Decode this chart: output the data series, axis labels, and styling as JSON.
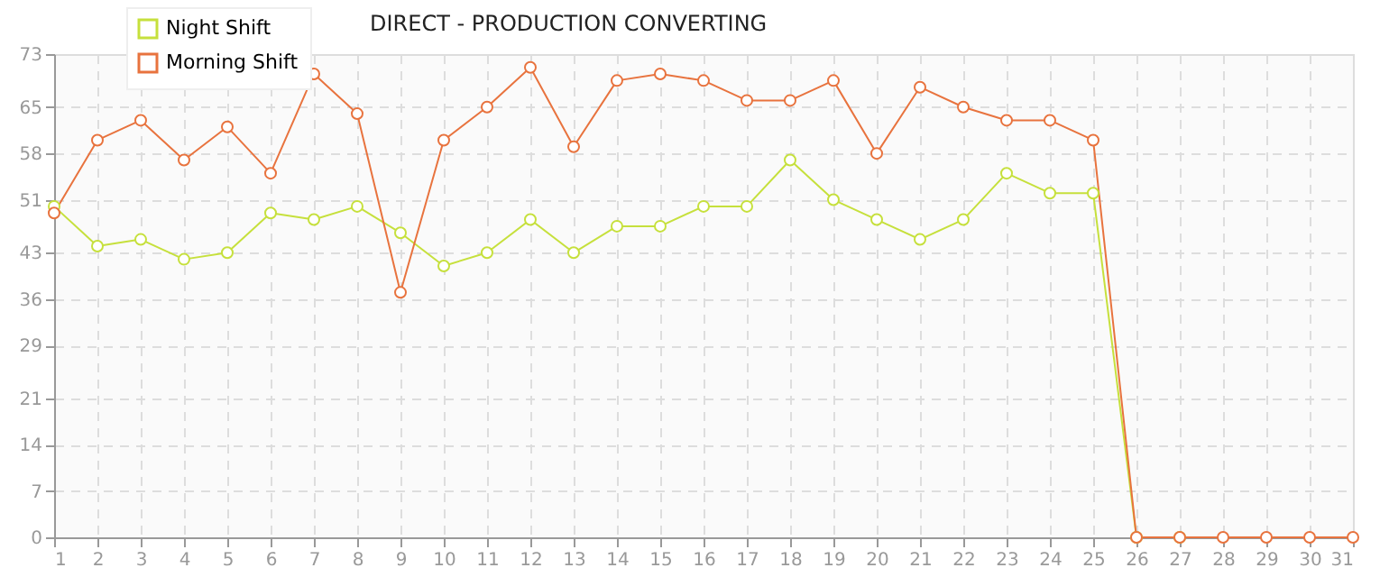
{
  "chart_data": {
    "type": "line",
    "title": "DIRECT - PRODUCTION CONVERTING",
    "x": [
      1,
      2,
      3,
      4,
      5,
      6,
      7,
      8,
      9,
      10,
      11,
      12,
      13,
      14,
      15,
      16,
      17,
      18,
      19,
      20,
      21,
      22,
      23,
      24,
      25,
      26,
      27,
      28,
      29,
      30,
      31
    ],
    "series": [
      {
        "name": "Night Shift",
        "color": "#c6e03c",
        "values": [
          50,
          44,
          45,
          42,
          43,
          49,
          48,
          50,
          46,
          41,
          43,
          48,
          43,
          47,
          47,
          50,
          50,
          57,
          51,
          48,
          45,
          48,
          55,
          52,
          52,
          0,
          0,
          null,
          null,
          null,
          null
        ]
      },
      {
        "name": "Morning Shift",
        "color": "#e8733e",
        "values": [
          49,
          60,
          63,
          57,
          62,
          55,
          70,
          64,
          37,
          60,
          65,
          71,
          59,
          69,
          70,
          69,
          66,
          66,
          69,
          58,
          68,
          65,
          63,
          63,
          60,
          0,
          0,
          0,
          0,
          0,
          0
        ]
      }
    ],
    "xlim": [
      1,
      31
    ],
    "xticks": [
      1,
      2,
      3,
      4,
      5,
      6,
      7,
      8,
      9,
      10,
      11,
      12,
      13,
      14,
      15,
      16,
      17,
      18,
      19,
      20,
      21,
      22,
      23,
      24,
      25,
      26,
      27,
      28,
      29,
      30,
      31
    ],
    "ylim": [
      0,
      73
    ],
    "yticks": [
      0,
      7,
      14,
      21,
      29,
      36,
      43,
      51,
      58,
      65,
      73
    ],
    "grid": true,
    "legend": "top left",
    "marker": "circle",
    "line_style": "solid"
  }
}
